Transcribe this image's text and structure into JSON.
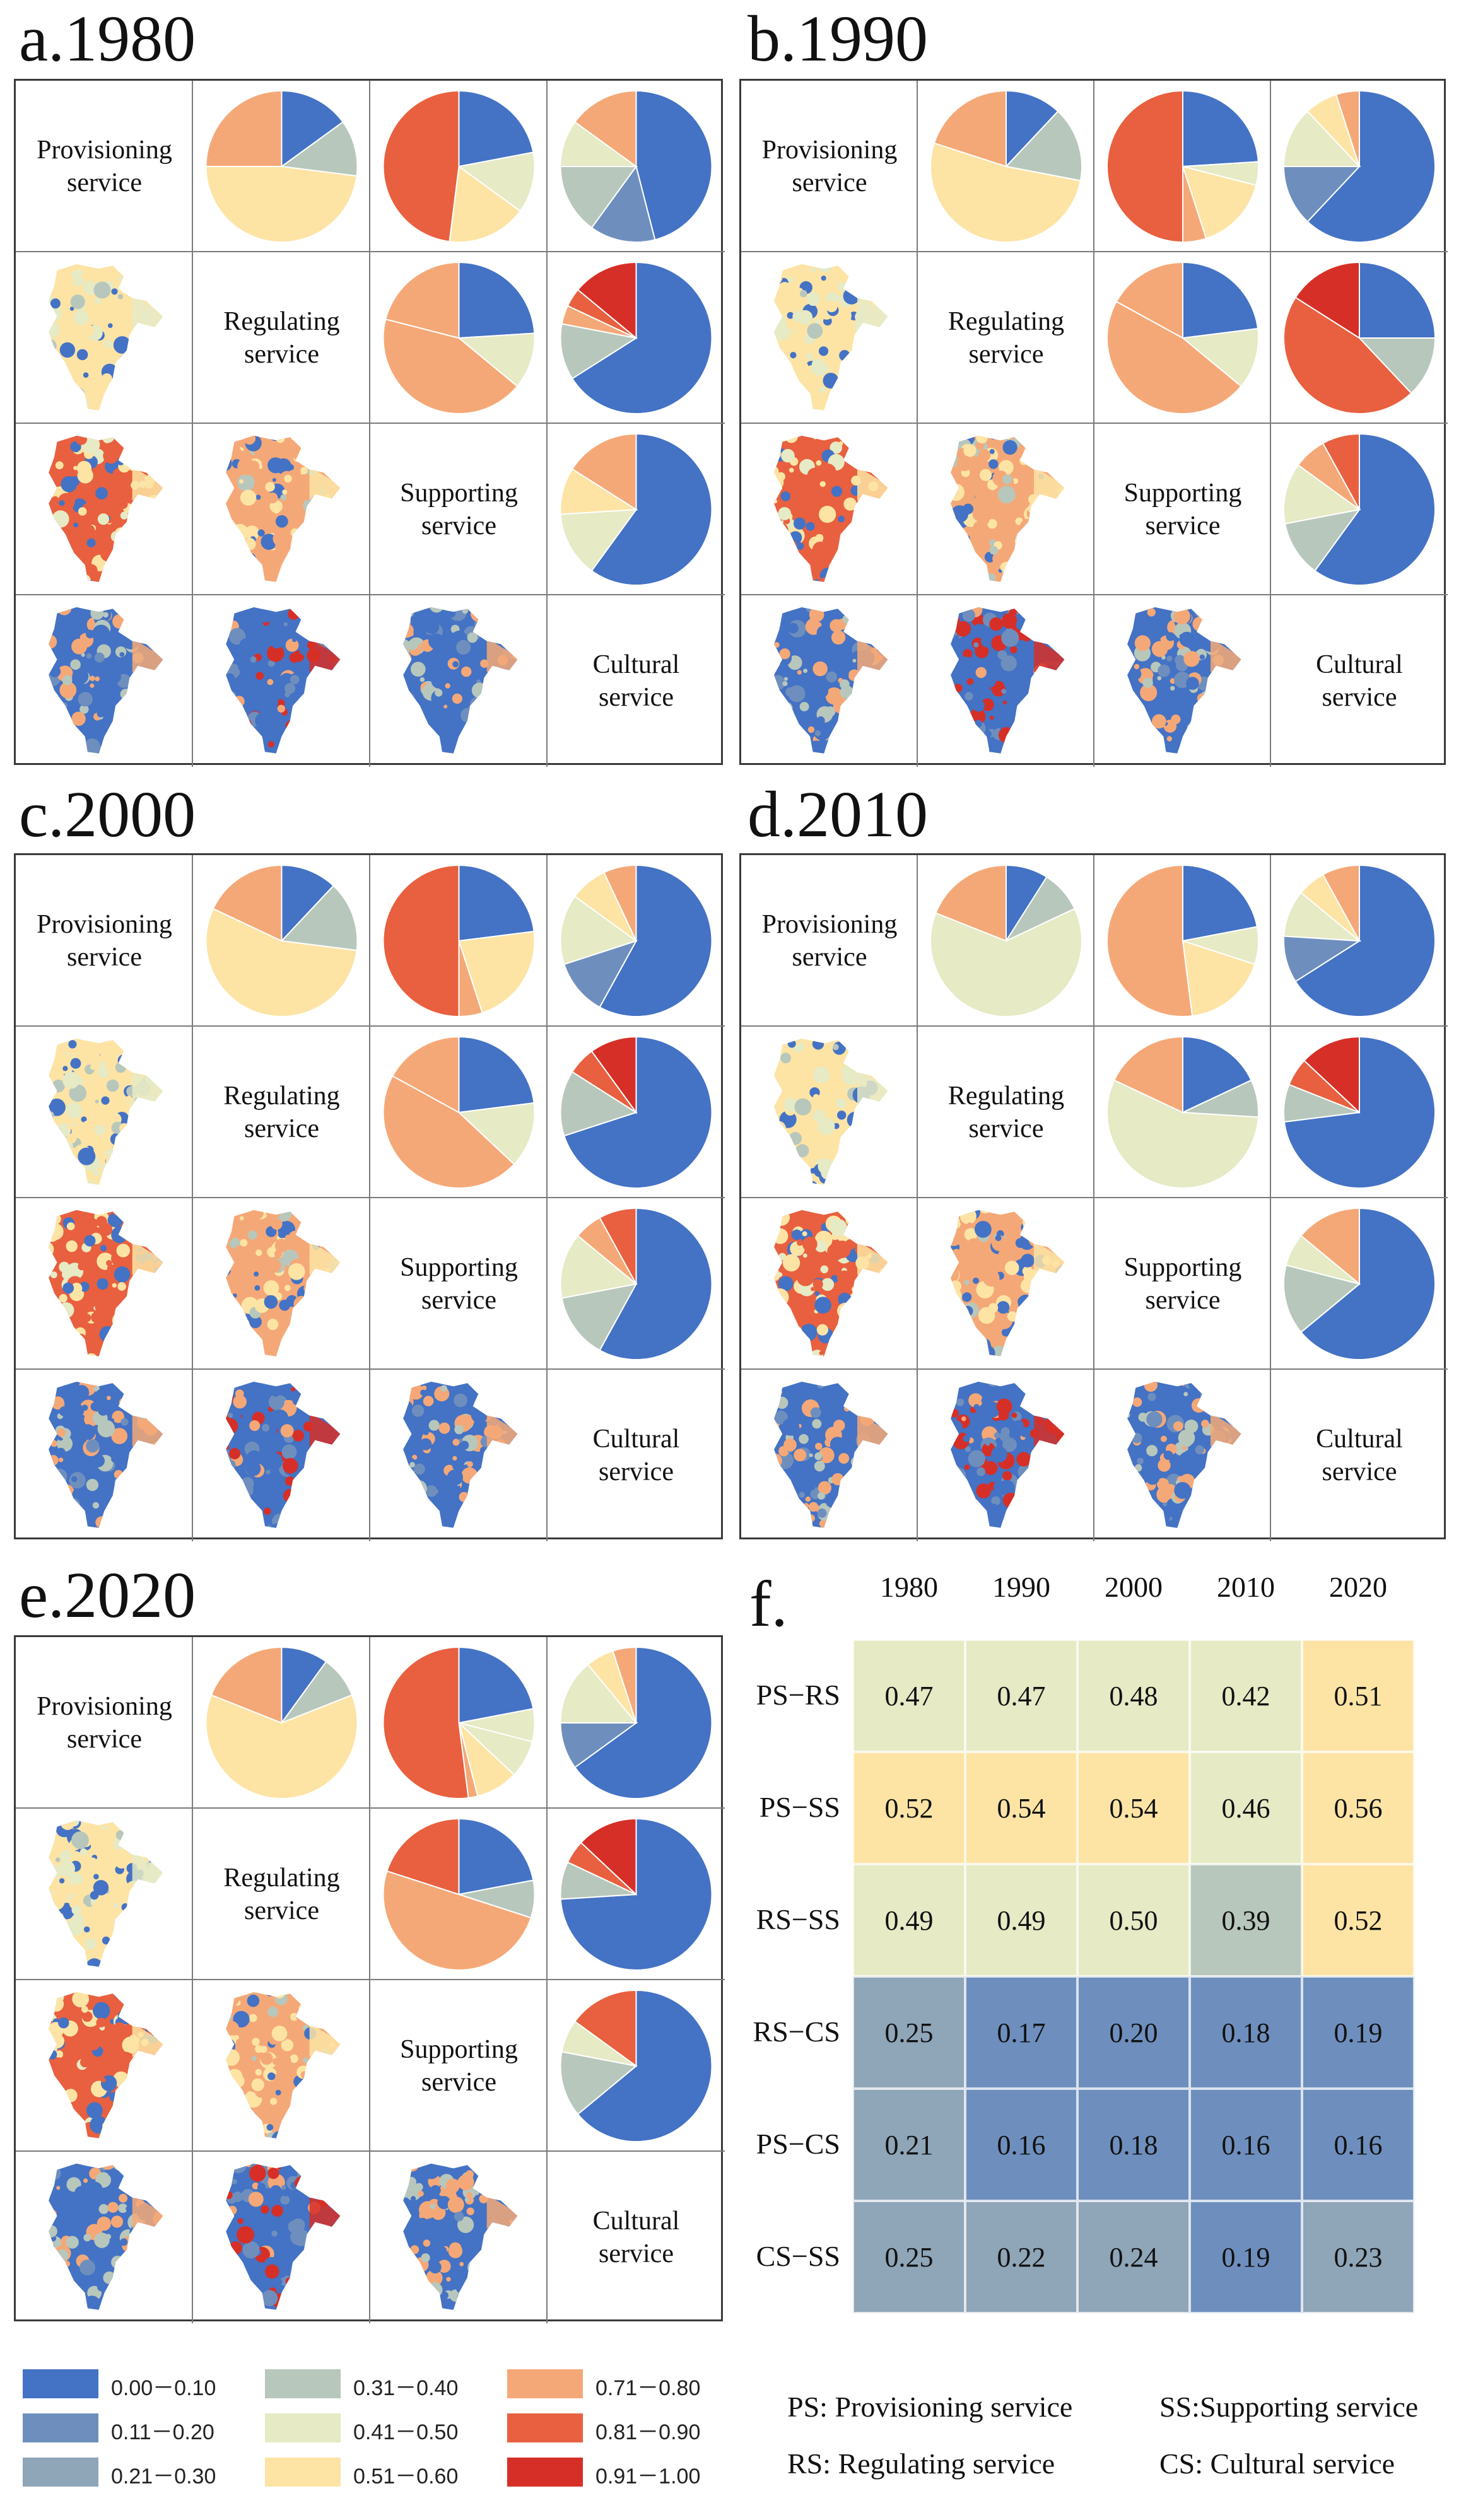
{
  "colors": {
    "c1": "#4472C4",
    "c2": "#6E8FBE",
    "c3": "#8FA5B8",
    "c4": "#B8C7BC",
    "c5": "#E6EAC5",
    "c6": "#FDE4A5",
    "c7": "#F5A877",
    "c8": "#E8603F",
    "c9": "#D62F27"
  },
  "service_labels": {
    "ps": [
      "Provisioning",
      "service"
    ],
    "rs": [
      "Regulating",
      "service"
    ],
    "ss": [
      "Supporting",
      "service"
    ],
    "cs": [
      "Cultural",
      "service"
    ]
  },
  "chart_data": [
    {
      "type": "pie-matrix",
      "title": "a.1980",
      "pies": [
        {
          "pair": "PS-RS",
          "values": [
            0.15,
            0.12,
            0.48,
            0.25
          ],
          "colors": [
            "c1",
            "c4",
            "c6",
            "c7"
          ]
        },
        {
          "pair": "PS-SS",
          "values": [
            0.22,
            0.13,
            0.17,
            0.48
          ],
          "colors": [
            "c1",
            "c5",
            "c6",
            "c8"
          ]
        },
        {
          "pair": "PS-CS",
          "values": [
            0.46,
            0.14,
            0.15,
            0.1,
            0.15
          ],
          "colors": [
            "c1",
            "c2",
            "c4",
            "c5",
            "c7"
          ]
        },
        {
          "pair": "RS-SS",
          "values": [
            0.24,
            0.12,
            0.43,
            0.21
          ],
          "colors": [
            "c1",
            "c5",
            "c7",
            "c7"
          ]
        },
        {
          "pair": "RS-CS",
          "values": [
            0.66,
            0.12,
            0.04,
            0.04,
            0.14
          ],
          "colors": [
            "c1",
            "c4",
            "c7",
            "c8",
            "c9"
          ]
        },
        {
          "pair": "SS-CS",
          "values": [
            0.6,
            0.14,
            0.1,
            0.16
          ],
          "colors": [
            "c1",
            "c5",
            "c6",
            "c7"
          ]
        }
      ]
    },
    {
      "type": "pie-matrix",
      "title": "b.1990",
      "pies": [
        {
          "pair": "PS-RS",
          "values": [
            0.12,
            0.16,
            0.52,
            0.2
          ],
          "colors": [
            "c1",
            "c4",
            "c6",
            "c7"
          ]
        },
        {
          "pair": "PS-SS",
          "values": [
            0.24,
            0.05,
            0.16,
            0.05,
            0.5
          ],
          "colors": [
            "c1",
            "c5",
            "c6",
            "c7",
            "c8"
          ]
        },
        {
          "pair": "PS-CS",
          "values": [
            0.62,
            0.13,
            0.13,
            0.07,
            0.05
          ],
          "colors": [
            "c1",
            "c2",
            "c5",
            "c6",
            "c7"
          ]
        },
        {
          "pair": "RS-SS",
          "values": [
            0.23,
            0.13,
            0.47,
            0.17
          ],
          "colors": [
            "c1",
            "c5",
            "c7",
            "c7"
          ]
        },
        {
          "pair": "RS-CS",
          "values": [
            0.25,
            0.13,
            0.46,
            0.16
          ],
          "colors": [
            "c1",
            "c4",
            "c8",
            "c9"
          ]
        },
        {
          "pair": "SS-CS",
          "values": [
            0.6,
            0.12,
            0.13,
            0.07,
            0.08
          ],
          "colors": [
            "c1",
            "c4",
            "c5",
            "c7",
            "c8"
          ]
        }
      ]
    },
    {
      "type": "pie-matrix",
      "title": "c.2000",
      "pies": [
        {
          "pair": "PS-RS",
          "values": [
            0.12,
            0.15,
            0.55,
            0.18
          ],
          "colors": [
            "c1",
            "c4",
            "c6",
            "c7"
          ]
        },
        {
          "pair": "PS-SS",
          "values": [
            0.23,
            0.22,
            0.05,
            0.5
          ],
          "colors": [
            "c1",
            "c6",
            "c7",
            "c8"
          ]
        },
        {
          "pair": "PS-CS",
          "values": [
            0.58,
            0.12,
            0.15,
            0.08,
            0.07
          ],
          "colors": [
            "c1",
            "c2",
            "c5",
            "c6",
            "c7"
          ]
        },
        {
          "pair": "RS-SS",
          "values": [
            0.23,
            0.14,
            0.46,
            0.17
          ],
          "colors": [
            "c1",
            "c5",
            "c7",
            "c7"
          ]
        },
        {
          "pair": "RS-CS",
          "values": [
            0.7,
            0.14,
            0.06,
            0.1
          ],
          "colors": [
            "c1",
            "c4",
            "c8",
            "c9"
          ]
        },
        {
          "pair": "SS-CS",
          "values": [
            0.58,
            0.14,
            0.14,
            0.06,
            0.08
          ],
          "colors": [
            "c1",
            "c4",
            "c5",
            "c7",
            "c8"
          ]
        }
      ]
    },
    {
      "type": "pie-matrix",
      "title": "d.2010",
      "pies": [
        {
          "pair": "PS-RS",
          "values": [
            0.09,
            0.09,
            0.63,
            0.19
          ],
          "colors": [
            "c1",
            "c4",
            "c5",
            "c7"
          ]
        },
        {
          "pair": "PS-SS",
          "values": [
            0.22,
            0.08,
            0.18,
            0.52
          ],
          "colors": [
            "c1",
            "c5",
            "c6",
            "c7"
          ]
        },
        {
          "pair": "PS-CS",
          "values": [
            0.66,
            0.1,
            0.1,
            0.06,
            0.08
          ],
          "colors": [
            "c1",
            "c2",
            "c5",
            "c6",
            "c7"
          ]
        },
        {
          "pair": "RS-SS",
          "values": [
            0.18,
            0.08,
            0.56,
            0.18
          ],
          "colors": [
            "c1",
            "c4",
            "c5",
            "c7"
          ]
        },
        {
          "pair": "RS-CS",
          "values": [
            0.73,
            0.08,
            0.06,
            0.13
          ],
          "colors": [
            "c1",
            "c4",
            "c8",
            "c9"
          ]
        },
        {
          "pair": "SS-CS",
          "values": [
            0.64,
            0.15,
            0.07,
            0.14
          ],
          "colors": [
            "c1",
            "c4",
            "c5",
            "c7"
          ]
        }
      ]
    },
    {
      "type": "pie-matrix",
      "title": "e.2020",
      "pies": [
        {
          "pair": "PS-RS",
          "values": [
            0.1,
            0.09,
            0.62,
            0.19
          ],
          "colors": [
            "c1",
            "c4",
            "c6",
            "c7"
          ]
        },
        {
          "pair": "PS-SS",
          "values": [
            0.22,
            0.07,
            0.08,
            0.09,
            0.02,
            0.52
          ],
          "colors": [
            "c1",
            "c5",
            "c5",
            "c6",
            "c7",
            "c8"
          ]
        },
        {
          "pair": "PS-CS",
          "values": [
            0.65,
            0.1,
            0.14,
            0.06,
            0.05
          ],
          "colors": [
            "c1",
            "c2",
            "c5",
            "c6",
            "c7"
          ]
        },
        {
          "pair": "RS-SS",
          "values": [
            0.22,
            0.08,
            0.5,
            0.2
          ],
          "colors": [
            "c1",
            "c4",
            "c7",
            "c8"
          ]
        },
        {
          "pair": "RS-CS",
          "values": [
            0.74,
            0.08,
            0.05,
            0.13
          ],
          "colors": [
            "c1",
            "c4",
            "c8",
            "c9"
          ]
        },
        {
          "pair": "SS-CS",
          "values": [
            0.64,
            0.14,
            0.07,
            0.15
          ],
          "colors": [
            "c1",
            "c4",
            "c5",
            "c8"
          ]
        }
      ]
    },
    {
      "type": "heatmap",
      "title": "f.",
      "columns": [
        "1980",
        "1990",
        "2000",
        "2010",
        "2020"
      ],
      "rows": [
        "PS−RS",
        "PS−SS",
        "RS−SS",
        "RS−CS",
        "PS−CS",
        "CS−SS"
      ],
      "values": [
        [
          "0.47",
          "0.47",
          "0.48",
          "0.42",
          "0.51"
        ],
        [
          "0.52",
          "0.54",
          "0.54",
          "0.46",
          "0.56"
        ],
        [
          "0.49",
          "0.49",
          "0.50",
          "0.39",
          "0.52"
        ],
        [
          "0.25",
          "0.17",
          "0.20",
          "0.18",
          "0.19"
        ],
        [
          "0.21",
          "0.16",
          "0.18",
          "0.16",
          "0.16"
        ],
        [
          "0.25",
          "0.22",
          "0.24",
          "0.19",
          "0.23"
        ]
      ],
      "colors": [
        [
          "c5",
          "c5",
          "c5",
          "c5",
          "c6"
        ],
        [
          "c6",
          "c6",
          "c6",
          "c5",
          "c6"
        ],
        [
          "c5",
          "c5",
          "c5",
          "c4",
          "c6"
        ],
        [
          "c3",
          "c2",
          "c2",
          "c2",
          "c2"
        ],
        [
          "c3",
          "c2",
          "c2",
          "c2",
          "c2"
        ],
        [
          "c3",
          "c3",
          "c3",
          "c2",
          "c3"
        ]
      ]
    }
  ],
  "legend": [
    {
      "label": "0.00－0.10",
      "color": "c1"
    },
    {
      "label": "0.11－0.20",
      "color": "c2"
    },
    {
      "label": "0.21－0.30",
      "color": "c3"
    },
    {
      "label": "0.31－0.40",
      "color": "c4"
    },
    {
      "label": "0.41－0.50",
      "color": "c5"
    },
    {
      "label": "0.51－0.60",
      "color": "c6"
    },
    {
      "label": "0.71－0.80",
      "color": "c7"
    },
    {
      "label": "0.81－0.90",
      "color": "c8"
    },
    {
      "label": "0.91－1.00",
      "color": "c9"
    }
  ],
  "abbreviations": {
    "ps": "PS: Provisioning service",
    "ss": "SS:Supporting service",
    "rs": "RS:  Regulating service",
    "cs": "CS:  Cultural service"
  },
  "map_palettes": {
    "ps-rs": [
      "c6",
      "c6",
      "c5",
      "c1",
      "c4"
    ],
    "ps-ss": [
      "c8",
      "c8",
      "c6",
      "c1",
      "c5"
    ],
    "ps-cs": [
      "c1",
      "c1",
      "c7",
      "c4",
      "c2"
    ],
    "rs-ss": [
      "c7",
      "c7",
      "c6",
      "c1",
      "c4"
    ],
    "rs-cs": [
      "c1",
      "c1",
      "c9",
      "c2",
      "c7"
    ],
    "ss-cs": [
      "c1",
      "c1",
      "c7",
      "c4",
      "c2"
    ]
  }
}
